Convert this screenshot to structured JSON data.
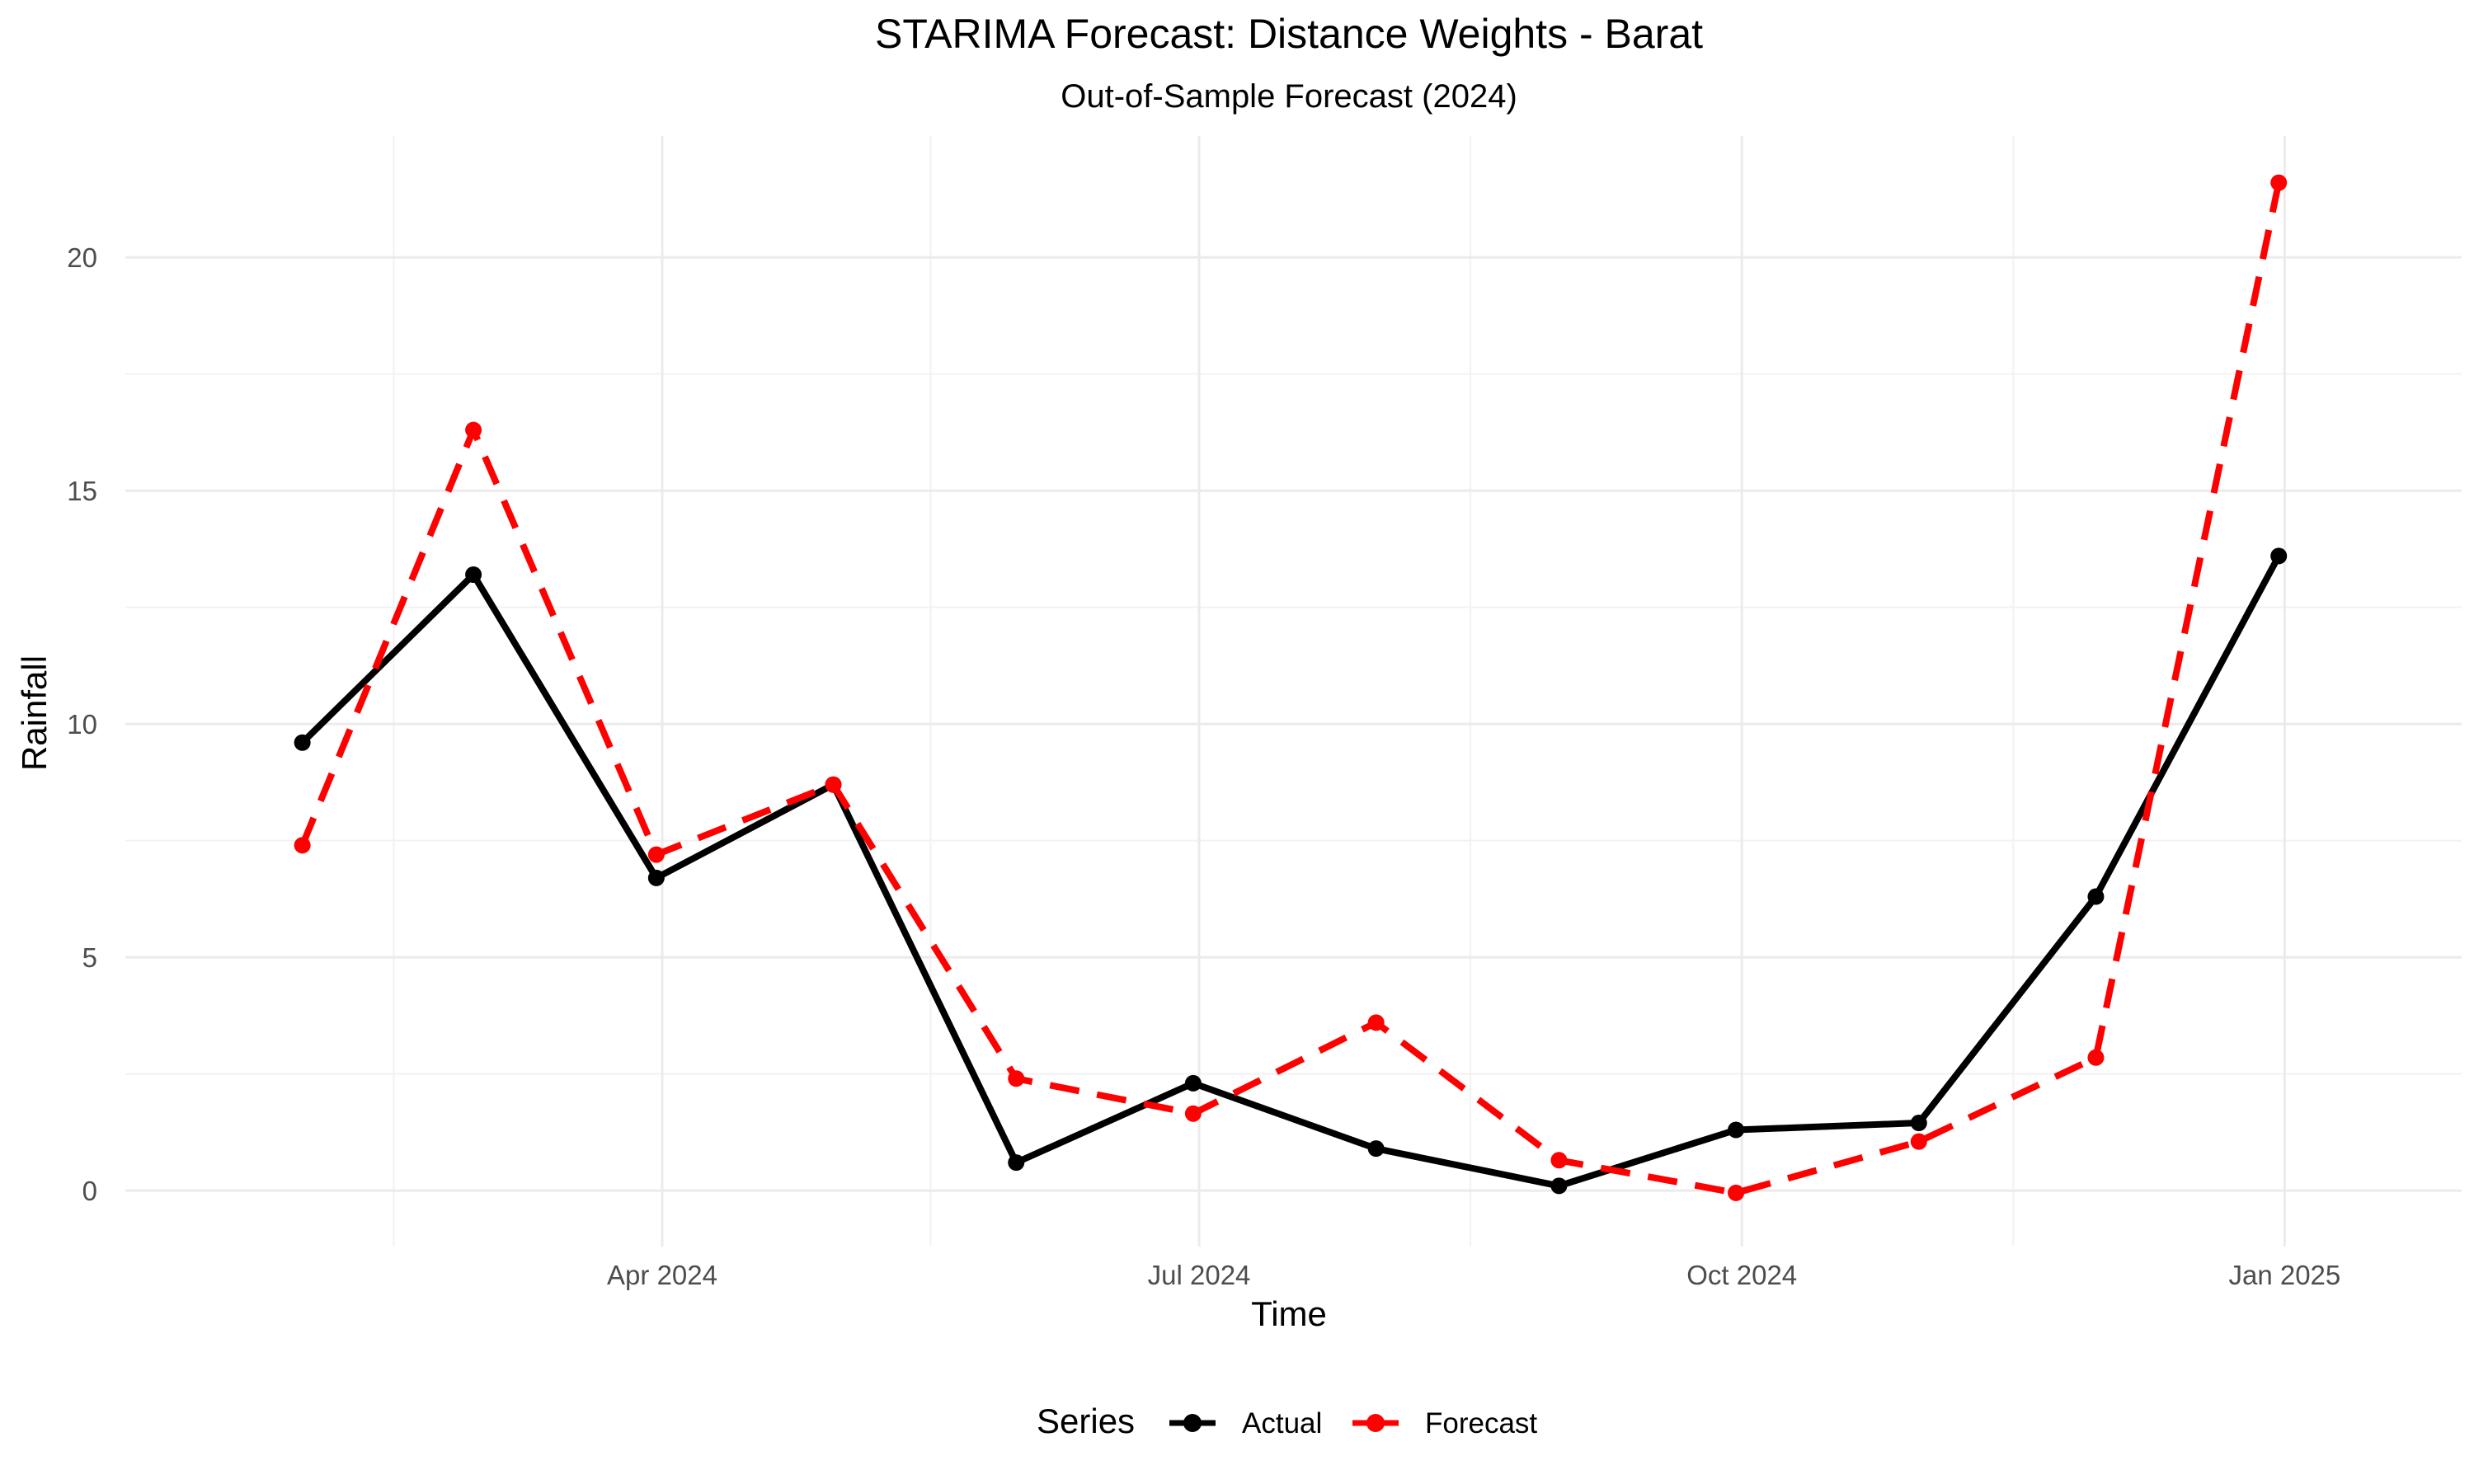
{
  "chart_data": {
    "type": "line",
    "title": "STARIMA Forecast: Distance Weights - Barat",
    "subtitle": "Out-of-Sample Forecast (2024)",
    "xlabel": "Time",
    "ylabel": "Rainfall",
    "x": [
      "2024-01-31",
      "2024-02-29",
      "2024-03-31",
      "2024-04-30",
      "2024-05-31",
      "2024-06-30",
      "2024-07-31",
      "2024-08-31",
      "2024-09-30",
      "2024-10-31",
      "2024-11-30",
      "2024-12-31"
    ],
    "xlim": [
      "2024-01-01",
      "2025-01-31"
    ],
    "ylim": [
      -1.2,
      22.6
    ],
    "x_ticks": [
      {
        "date": "2024-04-01",
        "label": "Apr 2024"
      },
      {
        "date": "2024-07-01",
        "label": "Jul 2024"
      },
      {
        "date": "2024-10-01",
        "label": "Oct 2024"
      },
      {
        "date": "2025-01-01",
        "label": "Jan 2025"
      }
    ],
    "y_ticks": [
      0,
      5,
      10,
      15,
      20
    ],
    "grid": true,
    "legend_position": "bottom",
    "legend_title": "Series",
    "series": [
      {
        "name": "Actual",
        "color": "#000000",
        "dash": "solid",
        "values": [
          9.6,
          13.2,
          6.7,
          8.7,
          0.6,
          2.3,
          0.9,
          0.1,
          1.3,
          1.45,
          6.3,
          13.6
        ]
      },
      {
        "name": "Forecast",
        "color": "#ff0000",
        "dash": "dashed",
        "values": [
          7.4,
          16.3,
          7.2,
          8.7,
          2.4,
          1.65,
          3.6,
          0.65,
          -0.05,
          1.05,
          2.85,
          21.6
        ]
      }
    ]
  }
}
